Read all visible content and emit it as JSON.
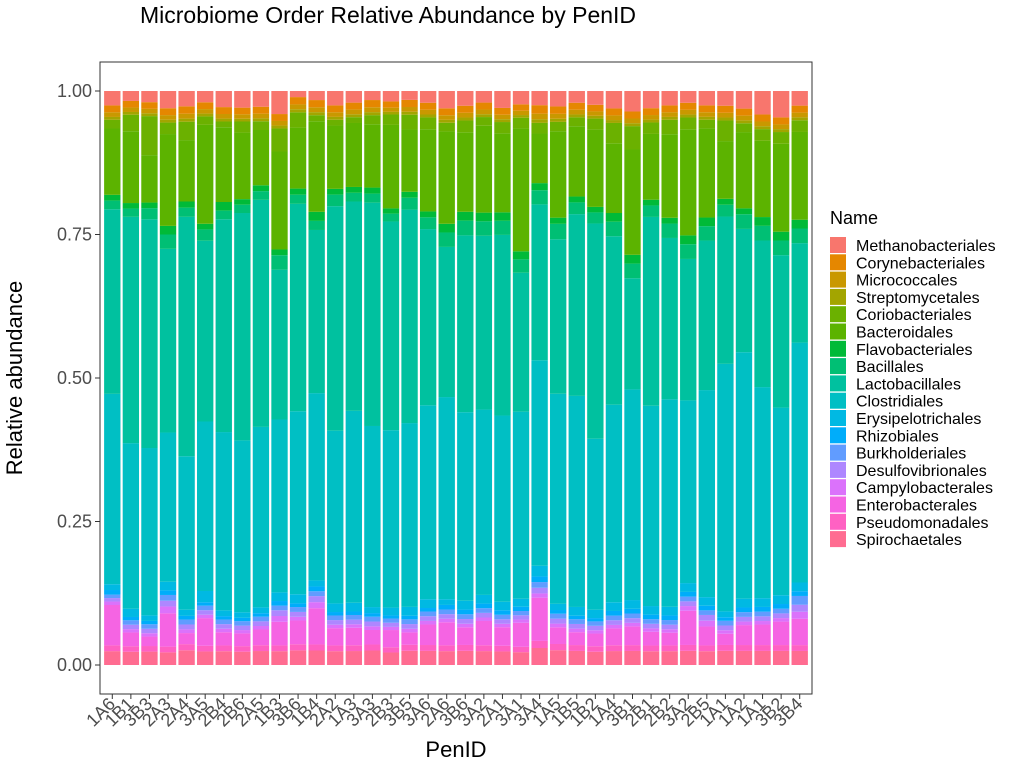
{
  "chart_data": {
    "type": "bar",
    "stacked": true,
    "title": "Microbiome Order Relative Abundance by PenID",
    "xlabel": "PenID",
    "ylabel": "Relative abundance",
    "ylim": [
      0,
      1
    ],
    "yticks": [
      0,
      0.25,
      0.5,
      0.75,
      1
    ],
    "ytick_labels": [
      "0.00",
      "0.25",
      "0.50",
      "0.75",
      "1.00"
    ],
    "grid": false,
    "legend_title": "Name",
    "legend_position": "right",
    "categories": [
      "1A6",
      "1B1",
      "3B3",
      "2A3",
      "2A4",
      "3A5",
      "2B4",
      "2B6",
      "2A5",
      "1B3",
      "3B6",
      "1B4",
      "2A2",
      "1A3",
      "3A3",
      "2B3",
      "3B5",
      "3A6",
      "2A6",
      "3B6",
      "3A2",
      "2A1",
      "3A1",
      "3A4",
      "1A5",
      "1B5",
      "1B2",
      "1A4",
      "3B1",
      "2B1",
      "2B2",
      "3A2",
      "2B5",
      "1A1",
      "1A2",
      "1A1",
      "3B2",
      "3B4"
    ],
    "series": [
      {
        "name": "Methanobacteriales",
        "color": "#F8766D",
        "values": [
          0.025,
          0.018,
          0.02,
          0.03,
          0.025,
          0.02,
          0.028,
          0.03,
          0.027,
          0.04,
          0.01,
          0.015,
          0.025,
          0.02,
          0.015,
          0.02,
          0.015,
          0.02,
          0.03,
          0.025,
          0.02,
          0.03,
          0.025,
          0.02,
          0.025,
          0.02,
          0.025,
          0.03,
          0.035,
          0.03,
          0.025,
          0.02,
          0.025,
          0.025,
          0.03,
          0.04,
          0.045,
          0.025
        ]
      },
      {
        "name": "Corynebacteriales",
        "color": "#E58700",
        "values": [
          0.012,
          0.012,
          0.012,
          0.012,
          0.012,
          0.012,
          0.012,
          0.012,
          0.012,
          0.012,
          0.012,
          0.012,
          0.012,
          0.012,
          0.012,
          0.012,
          0.012,
          0.012,
          0.012,
          0.012,
          0.012,
          0.012,
          0.012,
          0.012,
          0.012,
          0.012,
          0.012,
          0.012,
          0.012,
          0.012,
          0.012,
          0.012,
          0.012,
          0.012,
          0.012,
          0.012,
          0.012,
          0.012
        ]
      },
      {
        "name": "Micrococcales",
        "color": "#C99800",
        "values": [
          0.008,
          0.008,
          0.008,
          0.008,
          0.008,
          0.008,
          0.008,
          0.008,
          0.008,
          0.008,
          0.008,
          0.008,
          0.008,
          0.008,
          0.008,
          0.008,
          0.008,
          0.008,
          0.008,
          0.008,
          0.008,
          0.008,
          0.008,
          0.008,
          0.008,
          0.008,
          0.008,
          0.008,
          0.008,
          0.008,
          0.008,
          0.008,
          0.008,
          0.008,
          0.008,
          0.008,
          0.008,
          0.008
        ]
      },
      {
        "name": "Streptomycetales",
        "color": "#A3A500",
        "values": [
          0.005,
          0.005,
          0.005,
          0.005,
          0.005,
          0.005,
          0.005,
          0.005,
          0.005,
          0.005,
          0.005,
          0.005,
          0.005,
          0.005,
          0.005,
          0.005,
          0.005,
          0.005,
          0.005,
          0.005,
          0.005,
          0.005,
          0.005,
          0.005,
          0.005,
          0.005,
          0.005,
          0.005,
          0.005,
          0.005,
          0.005,
          0.005,
          0.005,
          0.005,
          0.005,
          0.005,
          0.005,
          0.005
        ]
      },
      {
        "name": "Coriobacteriales",
        "color": "#6BB100",
        "values": [
          0.015,
          0.03,
          0.07,
          0.02,
          0.03,
          0.015,
          0.01,
          0.02,
          0.015,
          0.04,
          0.025,
          0.01,
          0.01,
          0.01,
          0.015,
          0.02,
          0.025,
          0.02,
          0.015,
          0.02,
          0.015,
          0.02,
          0.02,
          0.015,
          0.015,
          0.015,
          0.02,
          0.035,
          0.04,
          0.02,
          0.025,
          0.02,
          0.015,
          0.035,
          0.015,
          0.02,
          0.02,
          0.02
        ]
      },
      {
        "name": "Bacteroidales",
        "color": "#5CB300",
        "values": [
          0.115,
          0.13,
          0.085,
          0.16,
          0.1,
          0.175,
          0.13,
          0.12,
          0.095,
          0.17,
          0.1,
          0.15,
          0.11,
          0.11,
          0.105,
          0.16,
          0.105,
          0.14,
          0.16,
          0.135,
          0.15,
          0.14,
          0.23,
          0.07,
          0.14,
          0.12,
          0.14,
          0.12,
          0.18,
          0.115,
          0.145,
          0.18,
          0.155,
          0.098,
          0.13,
          0.13,
          0.15,
          0.15
        ]
      },
      {
        "name": "Flavobacteriales",
        "color": "#00BA38",
        "values": [
          0.01,
          0.01,
          0.01,
          0.015,
          0.01,
          0.01,
          0.015,
          0.01,
          0.01,
          0.01,
          0.01,
          0.015,
          0.01,
          0.01,
          0.01,
          0.01,
          0.01,
          0.01,
          0.015,
          0.015,
          0.015,
          0.015,
          0.015,
          0.01,
          0.01,
          0.01,
          0.01,
          0.015,
          0.015,
          0.01,
          0.01,
          0.015,
          0.015,
          0.01,
          0.01,
          0.015,
          0.015,
          0.015
        ]
      },
      {
        "name": "Bacillales",
        "color": "#00BF74",
        "values": [
          0.015,
          0.015,
          0.02,
          0.025,
          0.015,
          0.02,
          0.015,
          0.015,
          0.015,
          0.025,
          0.015,
          0.015,
          0.02,
          0.015,
          0.015,
          0.015,
          0.02,
          0.02,
          0.025,
          0.025,
          0.025,
          0.025,
          0.025,
          0.02,
          0.025,
          0.02,
          0.02,
          0.025,
          0.025,
          0.02,
          0.025,
          0.025,
          0.025,
          0.02,
          0.025,
          0.025,
          0.025,
          0.025
        ]
      },
      {
        "name": "Lactobacillales",
        "color": "#00C19F",
        "values": [
          0.32,
          0.41,
          0.41,
          0.32,
          0.39,
          0.32,
          0.37,
          0.41,
          0.39,
          0.26,
          0.34,
          0.27,
          0.39,
          0.36,
          0.37,
          0.4,
          0.36,
          0.3,
          0.26,
          0.3,
          0.3,
          0.32,
          0.26,
          0.22,
          0.25,
          0.31,
          0.39,
          0.29,
          0.19,
          0.33,
          0.28,
          0.24,
          0.26,
          0.25,
          0.21,
          0.25,
          0.26,
          0.17
        ]
      },
      {
        "name": "Clostridiales",
        "color": "#00BFC4",
        "values": [
          0.33,
          0.3,
          0.3,
          0.26,
          0.25,
          0.3,
          0.31,
          0.31,
          0.31,
          0.3,
          0.3,
          0.31,
          0.3,
          0.33,
          0.3,
          0.34,
          0.31,
          0.33,
          0.35,
          0.32,
          0.32,
          0.33,
          0.35,
          0.29,
          0.34,
          0.36,
          0.31,
          0.34,
          0.36,
          0.35,
          0.36,
          0.31,
          0.36,
          0.42,
          0.42,
          0.36,
          0.32,
          0.41
        ]
      },
      {
        "name": "Erysipelotrichales",
        "color": "#00B9E3",
        "values": [
          0.01,
          0.015,
          0.01,
          0.015,
          0.01,
          0.02,
          0.01,
          0.01,
          0.01,
          0.015,
          0.015,
          0.01,
          0.015,
          0.015,
          0.01,
          0.015,
          0.015,
          0.015,
          0.01,
          0.015,
          0.015,
          0.015,
          0.015,
          0.015,
          0.01,
          0.015,
          0.015,
          0.015,
          0.015,
          0.015,
          0.015,
          0.015,
          0.015,
          0.01,
          0.015,
          0.015,
          0.015,
          0.015
        ]
      },
      {
        "name": "Rhizobiales",
        "color": "#00ADFA",
        "values": [
          0.008,
          0.006,
          0.006,
          0.008,
          0.006,
          0.006,
          0.006,
          0.006,
          0.006,
          0.008,
          0.006,
          0.008,
          0.006,
          0.006,
          0.006,
          0.006,
          0.006,
          0.006,
          0.008,
          0.008,
          0.008,
          0.008,
          0.008,
          0.008,
          0.006,
          0.006,
          0.006,
          0.008,
          0.008,
          0.008,
          0.008,
          0.008,
          0.008,
          0.006,
          0.008,
          0.008,
          0.008,
          0.008
        ]
      },
      {
        "name": "Burkholderiales",
        "color": "#619CFF",
        "values": [
          0.006,
          0.008,
          0.008,
          0.01,
          0.008,
          0.008,
          0.008,
          0.008,
          0.008,
          0.008,
          0.008,
          0.008,
          0.008,
          0.008,
          0.008,
          0.008,
          0.008,
          0.008,
          0.008,
          0.008,
          0.008,
          0.008,
          0.008,
          0.008,
          0.008,
          0.008,
          0.008,
          0.008,
          0.008,
          0.008,
          0.008,
          0.008,
          0.008,
          0.008,
          0.008,
          0.008,
          0.008,
          0.015
        ]
      },
      {
        "name": "Desulfovibrionales",
        "color": "#AE87FF",
        "values": [
          0.006,
          0.008,
          0.008,
          0.01,
          0.008,
          0.008,
          0.008,
          0.008,
          0.008,
          0.01,
          0.008,
          0.01,
          0.008,
          0.008,
          0.008,
          0.008,
          0.008,
          0.008,
          0.008,
          0.008,
          0.008,
          0.008,
          0.008,
          0.008,
          0.008,
          0.008,
          0.008,
          0.008,
          0.008,
          0.008,
          0.008,
          0.008,
          0.01,
          0.008,
          0.008,
          0.008,
          0.008,
          0.012
        ]
      },
      {
        "name": "Campylobacterales",
        "color": "#DB72FB",
        "values": [
          0.006,
          0.006,
          0.006,
          0.012,
          0.006,
          0.006,
          0.006,
          0.006,
          0.006,
          0.01,
          0.006,
          0.01,
          0.006,
          0.006,
          0.006,
          0.006,
          0.006,
          0.006,
          0.006,
          0.006,
          0.006,
          0.006,
          0.006,
          0.006,
          0.006,
          0.006,
          0.006,
          0.006,
          0.006,
          0.006,
          0.006,
          0.008,
          0.01,
          0.006,
          0.006,
          0.006,
          0.006,
          0.012
        ]
      },
      {
        "name": "Enterobacterales",
        "color": "#F564E3",
        "values": [
          0.07,
          0.025,
          0.017,
          0.058,
          0.018,
          0.049,
          0.023,
          0.023,
          0.027,
          0.041,
          0.039,
          0.06,
          0.03,
          0.03,
          0.024,
          0.033,
          0.021,
          0.035,
          0.04,
          0.03,
          0.042,
          0.033,
          0.045,
          0.061,
          0.027,
          0.022,
          0.023,
          0.029,
          0.032,
          0.024,
          0.022,
          0.058,
          0.033,
          0.019,
          0.034,
          0.035,
          0.04,
          0.045
        ]
      },
      {
        "name": "Pseudomonadales",
        "color": "#FF61C3",
        "values": [
          0.01,
          0.01,
          0.01,
          0.01,
          0.01,
          0.01,
          0.01,
          0.01,
          0.01,
          0.01,
          0.01,
          0.01,
          0.01,
          0.01,
          0.01,
          0.01,
          0.01,
          0.01,
          0.01,
          0.01,
          0.01,
          0.01,
          0.01,
          0.01,
          0.01,
          0.01,
          0.01,
          0.01,
          0.01,
          0.01,
          0.01,
          0.01,
          0.01,
          0.01,
          0.01,
          0.01,
          0.01,
          0.01
        ]
      },
      {
        "name": "Spirochaetales",
        "color": "#FF6C91",
        "values": [
          0.024,
          0.024,
          0.024,
          0.022,
          0.024,
          0.024,
          0.024,
          0.024,
          0.024,
          0.024,
          0.024,
          0.024,
          0.024,
          0.024,
          0.024,
          0.024,
          0.024,
          0.024,
          0.024,
          0.024,
          0.024,
          0.024,
          0.024,
          0.024,
          0.024,
          0.024,
          0.024,
          0.024,
          0.024,
          0.024,
          0.024,
          0.024,
          0.024,
          0.024,
          0.024,
          0.024,
          0.024,
          0.024
        ]
      }
    ]
  }
}
